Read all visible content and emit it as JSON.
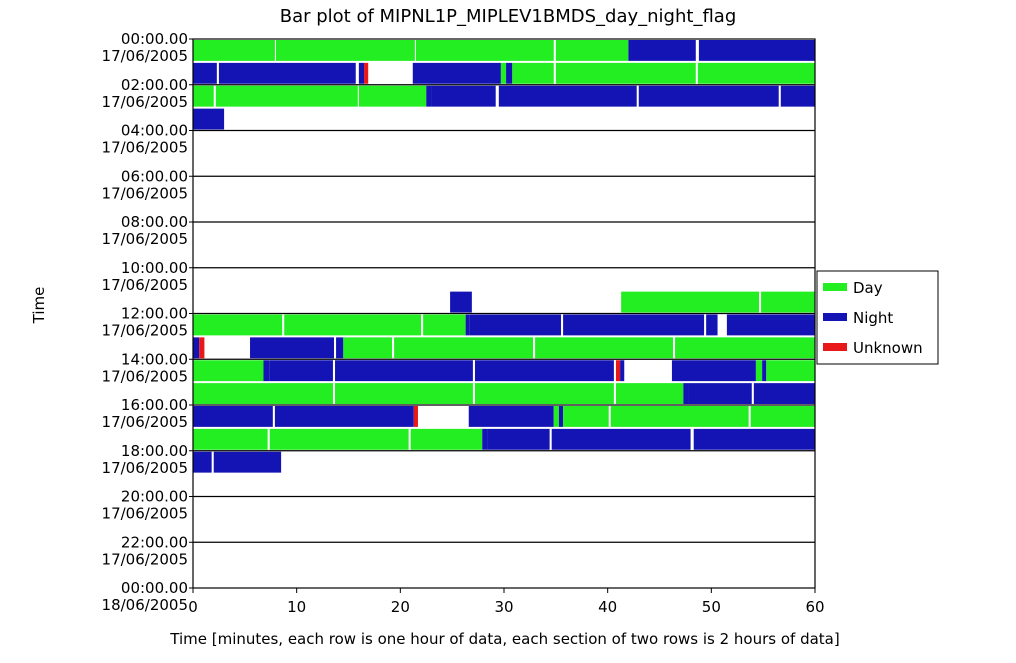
{
  "chart_data": {
    "type": "bar",
    "title": "Bar plot of MIPNL1P_MIPLEV1BMDS_day_night_flag",
    "xlabel": "Time [minutes, each row is one hour of data, each section of two rows is 2 hours of data]",
    "ylabel": "Time",
    "xlim": [
      0,
      60
    ],
    "x_ticks": [
      "0",
      "10",
      "20",
      "30",
      "40",
      "50",
      "60"
    ],
    "y_ticks": [
      {
        "time": "00:00.00",
        "date": "17/06/2005"
      },
      {
        "time": "02:00.00",
        "date": "17/06/2005"
      },
      {
        "time": "04:00.00",
        "date": "17/06/2005"
      },
      {
        "time": "06:00.00",
        "date": "17/06/2005"
      },
      {
        "time": "08:00.00",
        "date": "17/06/2005"
      },
      {
        "time": "10:00.00",
        "date": "17/06/2005"
      },
      {
        "time": "12:00.00",
        "date": "17/06/2005"
      },
      {
        "time": "14:00.00",
        "date": "17/06/2005"
      },
      {
        "time": "16:00.00",
        "date": "17/06/2005"
      },
      {
        "time": "18:00.00",
        "date": "17/06/2005"
      },
      {
        "time": "20:00.00",
        "date": "17/06/2005"
      },
      {
        "time": "22:00.00",
        "date": "17/06/2005"
      },
      {
        "time": "00:00.00",
        "date": "18/06/2005"
      }
    ],
    "legend": [
      {
        "name": "Day",
        "color": "#22ee22"
      },
      {
        "name": "Night",
        "color": "#1414b4"
      },
      {
        "name": "Unknown",
        "color": "#e81818"
      }
    ],
    "legend_position": "right",
    "colors": {
      "Day": "#22ee22",
      "Night": "#1414b4",
      "Unknown": "#e81818"
    },
    "rows": [
      {
        "hour": 0,
        "segments": [
          [
            0,
            7.9,
            "Day"
          ],
          [
            8,
            21.4,
            "Day"
          ],
          [
            21.5,
            34.8,
            "Day"
          ],
          [
            35,
            42,
            "Day"
          ],
          [
            42,
            42.3,
            "Night"
          ],
          [
            42.3,
            48.5,
            "Night"
          ],
          [
            48.8,
            60,
            "Night"
          ]
        ]
      },
      {
        "hour": 1,
        "segments": [
          [
            0,
            2.3,
            "Night"
          ],
          [
            2.5,
            15.7,
            "Night"
          ],
          [
            16,
            16.5,
            "Night"
          ],
          [
            16.5,
            16.9,
            "Unknown"
          ],
          [
            21.2,
            29.7,
            "Night"
          ],
          [
            29.7,
            30.2,
            "Day"
          ],
          [
            30.2,
            30.8,
            "Night"
          ],
          [
            30.8,
            34.8,
            "Day"
          ],
          [
            35,
            48.5,
            "Day"
          ],
          [
            48.7,
            60,
            "Day"
          ]
        ]
      },
      {
        "hour": 2,
        "segments": [
          [
            0,
            2,
            "Day"
          ],
          [
            2.2,
            15.9,
            "Day"
          ],
          [
            16,
            22.5,
            "Day"
          ],
          [
            22.5,
            23,
            "Night"
          ],
          [
            23,
            29.2,
            "Night"
          ],
          [
            29.5,
            42.8,
            "Night"
          ],
          [
            43,
            56.5,
            "Night"
          ],
          [
            56.7,
            60,
            "Night"
          ]
        ]
      },
      {
        "hour": 3,
        "segments": [
          [
            0,
            3,
            "Night"
          ]
        ]
      },
      {
        "hour": 4,
        "segments": []
      },
      {
        "hour": 5,
        "segments": []
      },
      {
        "hour": 6,
        "segments": []
      },
      {
        "hour": 7,
        "segments": []
      },
      {
        "hour": 8,
        "segments": []
      },
      {
        "hour": 9,
        "segments": []
      },
      {
        "hour": 10,
        "segments": []
      },
      {
        "hour": 11,
        "segments": [
          [
            24.8,
            26.9,
            "Night"
          ],
          [
            41.3,
            54.6,
            "Day"
          ],
          [
            54.8,
            60,
            "Day"
          ]
        ]
      },
      {
        "hour": 12,
        "segments": [
          [
            0,
            8.6,
            "Day"
          ],
          [
            8.8,
            22,
            "Day"
          ],
          [
            22.2,
            26.3,
            "Day"
          ],
          [
            26.3,
            26.7,
            "Night"
          ],
          [
            26.7,
            35.5,
            "Night"
          ],
          [
            35.7,
            49.3,
            "Night"
          ],
          [
            49.5,
            50.6,
            "Night"
          ],
          [
            51.5,
            60,
            "Night"
          ]
        ]
      },
      {
        "hour": 13,
        "segments": [
          [
            0,
            0.6,
            "Night"
          ],
          [
            0.6,
            1.1,
            "Unknown"
          ],
          [
            5.5,
            13.6,
            "Night"
          ],
          [
            13.8,
            14.5,
            "Night"
          ],
          [
            14.5,
            15,
            "Day"
          ],
          [
            15,
            19.2,
            "Day"
          ],
          [
            19.4,
            32.8,
            "Day"
          ],
          [
            33,
            46.3,
            "Day"
          ],
          [
            46.5,
            60,
            "Day"
          ]
        ]
      },
      {
        "hour": 14,
        "segments": [
          [
            0,
            6.8,
            "Day"
          ],
          [
            6.8,
            7.4,
            "Night"
          ],
          [
            7.4,
            13.5,
            "Night"
          ],
          [
            13.7,
            27,
            "Night"
          ],
          [
            27.2,
            40.6,
            "Night"
          ],
          [
            40.8,
            41.2,
            "Unknown"
          ],
          [
            41.2,
            41.6,
            "Night"
          ],
          [
            46.2,
            54.3,
            "Night"
          ],
          [
            54.3,
            54.9,
            "Day"
          ],
          [
            54.9,
            55.3,
            "Night"
          ],
          [
            55.3,
            60,
            "Day"
          ]
        ]
      },
      {
        "hour": 15,
        "segments": [
          [
            0,
            13.5,
            "Day"
          ],
          [
            13.7,
            27,
            "Day"
          ],
          [
            27.2,
            40.6,
            "Day"
          ],
          [
            40.8,
            47.3,
            "Day"
          ],
          [
            47.3,
            47.8,
            "Night"
          ],
          [
            47.8,
            53.9,
            "Night"
          ],
          [
            54.1,
            60,
            "Night"
          ]
        ]
      },
      {
        "hour": 16,
        "segments": [
          [
            0,
            7.7,
            "Night"
          ],
          [
            7.9,
            21.3,
            "Night"
          ],
          [
            21.3,
            21.7,
            "Unknown"
          ],
          [
            26.6,
            34.8,
            "Night"
          ],
          [
            34.8,
            35.3,
            "Day"
          ],
          [
            35.3,
            35.7,
            "Night"
          ],
          [
            35.7,
            40.1,
            "Day"
          ],
          [
            40.3,
            53.6,
            "Day"
          ],
          [
            53.8,
            60,
            "Day"
          ]
        ]
      },
      {
        "hour": 17,
        "segments": [
          [
            0,
            7.2,
            "Day"
          ],
          [
            7.4,
            20.8,
            "Day"
          ],
          [
            21,
            27.9,
            "Day"
          ],
          [
            27.9,
            28.4,
            "Night"
          ],
          [
            28.4,
            34.4,
            "Night"
          ],
          [
            34.6,
            48,
            "Night"
          ],
          [
            48.3,
            60,
            "Night"
          ]
        ]
      },
      {
        "hour": 18,
        "segments": [
          [
            0,
            1.8,
            "Night"
          ],
          [
            2,
            8.5,
            "Night"
          ]
        ]
      },
      {
        "hour": 19,
        "segments": []
      },
      {
        "hour": 20,
        "segments": []
      },
      {
        "hour": 21,
        "segments": []
      },
      {
        "hour": 22,
        "segments": []
      },
      {
        "hour": 23,
        "segments": []
      }
    ]
  }
}
